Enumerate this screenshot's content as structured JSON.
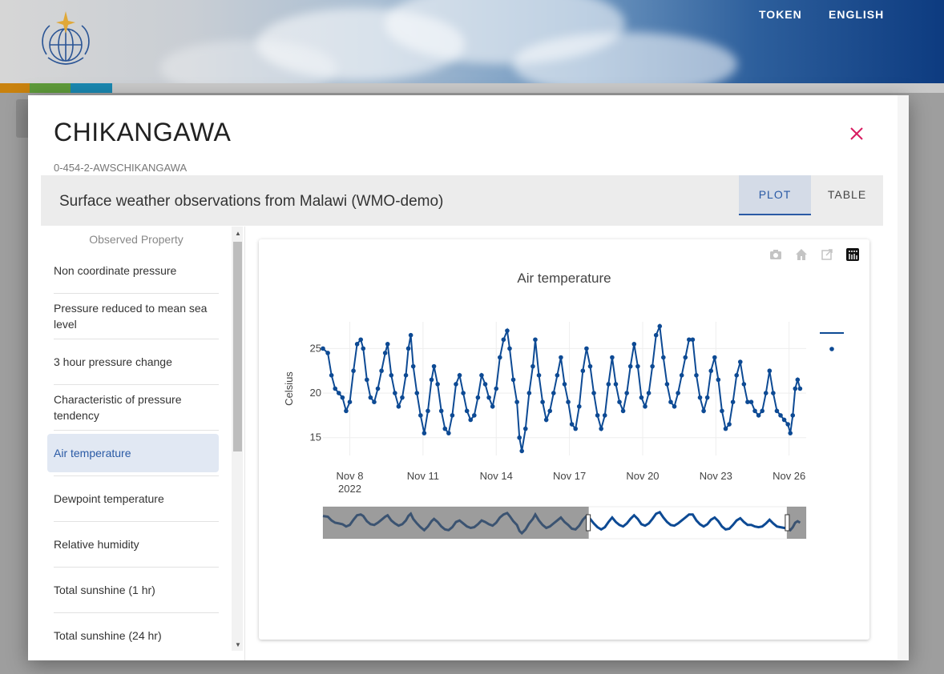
{
  "header": {
    "nav": [
      "TOKEN",
      "ENGLISH"
    ],
    "logo": "wmo-logo",
    "stripe_colors": [
      "#c9820e",
      "#5e9b3a",
      "#1a87b0",
      "#c9c9c9"
    ]
  },
  "dialog": {
    "title": "CHIKANGAWA",
    "wsi": "0-454-2-AWSCHIKANGAWA",
    "dataset": "Surface weather observations from Malawi (WMO-demo)",
    "tabs": [
      "PLOT",
      "TABLE"
    ],
    "active_tab": "PLOT"
  },
  "sidebar": {
    "header": "Observed Property",
    "items": [
      "Non coordinate pressure",
      "Pressure reduced to mean sea level",
      "3 hour pressure change",
      "Characteristic of pressure tendency",
      "Air temperature",
      "Dewpoint temperature",
      "Relative humidity",
      "Total sunshine (1 hr)",
      "Total sunshine (24 hr)"
    ],
    "active": "Air temperature"
  },
  "colors": {
    "accent": "#2a5aa5",
    "series": "#0d4a94",
    "close": "#d81b60"
  },
  "modebar": [
    "camera-icon",
    "home-icon",
    "external-link-icon",
    "plotly-logo-icon"
  ],
  "chart_data": {
    "type": "line",
    "title": "Air temperature",
    "ylabel": "Celsius",
    "xlabel": "",
    "x_ticks": [
      "Nov 8",
      "Nov 11",
      "Nov 14",
      "Nov 17",
      "Nov 20",
      "Nov 23",
      "Nov 26"
    ],
    "x_tick_subtitle": "2022",
    "y_ticks": [
      15,
      20,
      25
    ],
    "xlim_days": [
      6.9,
      26.7
    ],
    "ylim": [
      13,
      28
    ],
    "grid": true,
    "legend": "top-right",
    "rangeslider": {
      "present": true,
      "selected_fraction": [
        0.55,
        0.96
      ]
    },
    "series": [
      {
        "points": [
          [
            6.9,
            25
          ],
          [
            7.1,
            24.5
          ],
          [
            7.25,
            22
          ],
          [
            7.4,
            20.5
          ],
          [
            7.55,
            20
          ],
          [
            7.7,
            19.5
          ],
          [
            7.85,
            18
          ],
          [
            8.0,
            19
          ],
          [
            8.15,
            22.5
          ],
          [
            8.3,
            25.5
          ],
          [
            8.45,
            26
          ],
          [
            8.55,
            25
          ],
          [
            8.7,
            21.5
          ],
          [
            8.85,
            19.5
          ],
          [
            9.0,
            19
          ],
          [
            9.15,
            20.5
          ],
          [
            9.3,
            22.5
          ],
          [
            9.45,
            24.5
          ],
          [
            9.55,
            25.5
          ],
          [
            9.7,
            22
          ],
          [
            9.85,
            20
          ],
          [
            10.0,
            18.5
          ],
          [
            10.15,
            19.5
          ],
          [
            10.3,
            22
          ],
          [
            10.4,
            25
          ],
          [
            10.5,
            26.5
          ],
          [
            10.6,
            23
          ],
          [
            10.75,
            20
          ],
          [
            10.9,
            17.5
          ],
          [
            11.05,
            15.5
          ],
          [
            11.2,
            18
          ],
          [
            11.35,
            21.5
          ],
          [
            11.45,
            23
          ],
          [
            11.6,
            21
          ],
          [
            11.75,
            18
          ],
          [
            11.9,
            16
          ],
          [
            12.05,
            15.5
          ],
          [
            12.2,
            17.5
          ],
          [
            12.35,
            21
          ],
          [
            12.5,
            22
          ],
          [
            12.65,
            20
          ],
          [
            12.8,
            18
          ],
          [
            12.95,
            17
          ],
          [
            13.1,
            17.5
          ],
          [
            13.25,
            19.5
          ],
          [
            13.4,
            22
          ],
          [
            13.55,
            21
          ],
          [
            13.7,
            19.5
          ],
          [
            13.85,
            18.5
          ],
          [
            14.0,
            20.5
          ],
          [
            14.15,
            24
          ],
          [
            14.3,
            26
          ],
          [
            14.45,
            27
          ],
          [
            14.55,
            25
          ],
          [
            14.7,
            21.5
          ],
          [
            14.85,
            19
          ],
          [
            14.95,
            15
          ],
          [
            15.05,
            13.5
          ],
          [
            15.2,
            16
          ],
          [
            15.35,
            20
          ],
          [
            15.5,
            23
          ],
          [
            15.6,
            26
          ],
          [
            15.75,
            22
          ],
          [
            15.9,
            19
          ],
          [
            16.05,
            17
          ],
          [
            16.2,
            18
          ],
          [
            16.35,
            20
          ],
          [
            16.5,
            22
          ],
          [
            16.65,
            24
          ],
          [
            16.8,
            21
          ],
          [
            16.95,
            19
          ],
          [
            17.1,
            16.5
          ],
          [
            17.25,
            16
          ],
          [
            17.4,
            18.5
          ],
          [
            17.55,
            22.5
          ],
          [
            17.7,
            25
          ],
          [
            17.85,
            23
          ],
          [
            18.0,
            20
          ],
          [
            18.15,
            17.5
          ],
          [
            18.3,
            16
          ],
          [
            18.45,
            17.5
          ],
          [
            18.6,
            21
          ],
          [
            18.75,
            24
          ],
          [
            18.9,
            21
          ],
          [
            19.05,
            19
          ],
          [
            19.2,
            18
          ],
          [
            19.35,
            20
          ],
          [
            19.5,
            23
          ],
          [
            19.65,
            25.5
          ],
          [
            19.8,
            23
          ],
          [
            19.95,
            19.5
          ],
          [
            20.1,
            18.5
          ],
          [
            20.25,
            20
          ],
          [
            20.4,
            23
          ],
          [
            20.55,
            26.5
          ],
          [
            20.7,
            27.5
          ],
          [
            20.85,
            24
          ],
          [
            21.0,
            21
          ],
          [
            21.15,
            19
          ],
          [
            21.3,
            18.5
          ],
          [
            21.45,
            20
          ],
          [
            21.6,
            22
          ],
          [
            21.75,
            24
          ],
          [
            21.9,
            26
          ],
          [
            22.05,
            26
          ],
          [
            22.2,
            22
          ],
          [
            22.35,
            19.5
          ],
          [
            22.5,
            18
          ],
          [
            22.65,
            19.5
          ],
          [
            22.8,
            22.5
          ],
          [
            22.95,
            24
          ],
          [
            23.1,
            21.5
          ],
          [
            23.25,
            18
          ],
          [
            23.4,
            16
          ],
          [
            23.55,
            16.5
          ],
          [
            23.7,
            19
          ],
          [
            23.85,
            22
          ],
          [
            24.0,
            23.5
          ],
          [
            24.15,
            21
          ],
          [
            24.3,
            19
          ],
          [
            24.45,
            19
          ],
          [
            24.6,
            18
          ],
          [
            24.75,
            17.5
          ],
          [
            24.9,
            18
          ],
          [
            25.05,
            20
          ],
          [
            25.2,
            22.5
          ],
          [
            25.35,
            20
          ],
          [
            25.5,
            18
          ],
          [
            25.65,
            17.5
          ],
          [
            25.8,
            17
          ],
          [
            25.95,
            16.5
          ],
          [
            26.05,
            15.5
          ],
          [
            26.15,
            17.5
          ],
          [
            26.25,
            20.5
          ],
          [
            26.35,
            21.5
          ],
          [
            26.45,
            20.5
          ]
        ]
      }
    ]
  }
}
